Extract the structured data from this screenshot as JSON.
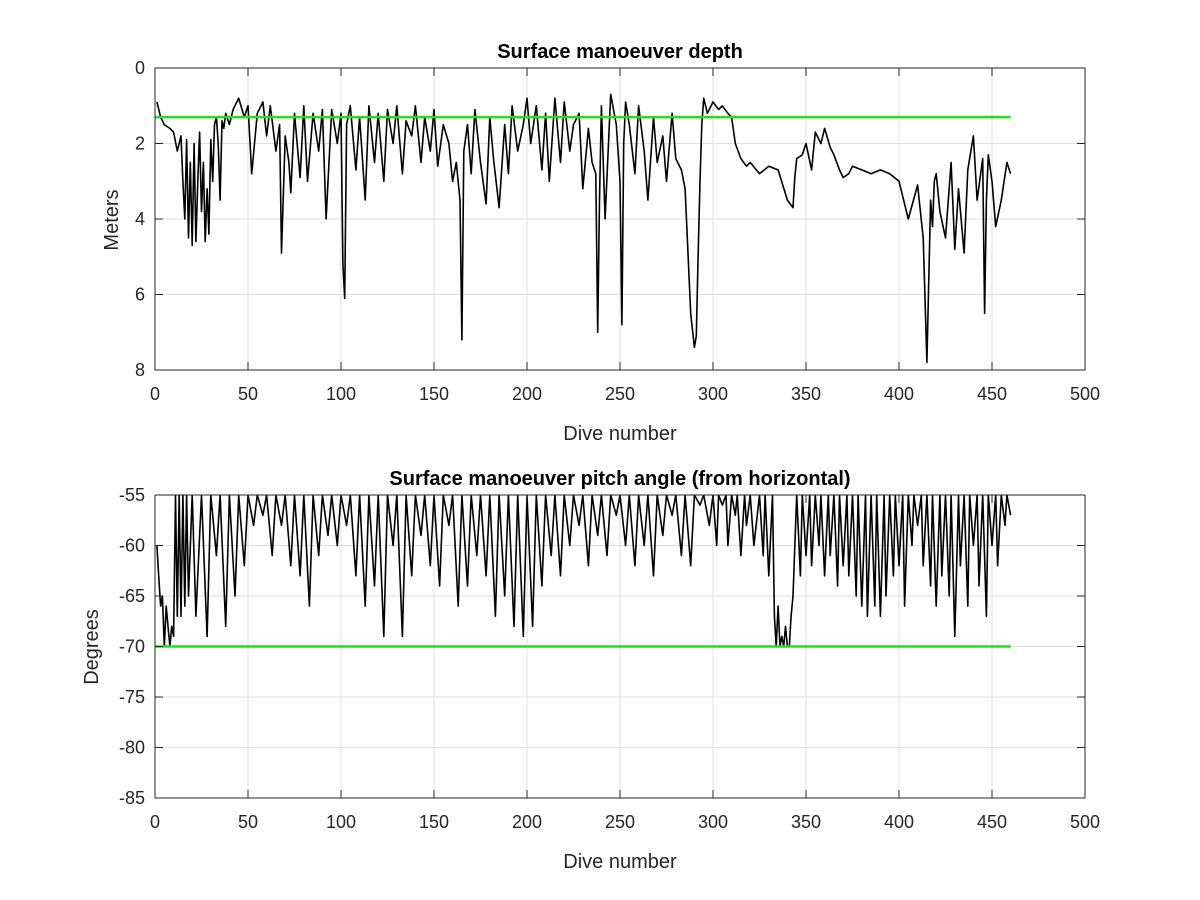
{
  "chart_data": [
    {
      "type": "line",
      "title": "Surface manoeuver depth",
      "xlabel": "Dive number",
      "ylabel": "Meters",
      "xlim": [
        0,
        500
      ],
      "ylim": [
        0,
        8
      ],
      "y_reversed": true,
      "xticks": [
        0,
        50,
        100,
        150,
        200,
        250,
        300,
        350,
        400,
        450,
        500
      ],
      "yticks": [
        0,
        2,
        4,
        6,
        8
      ],
      "grid": true,
      "colors": {
        "data": "#000000",
        "reference": "#22dd22"
      },
      "series": [
        {
          "role": "data",
          "x": [
            1,
            3,
            5,
            8,
            10,
            12,
            14,
            15,
            16,
            17,
            18,
            19,
            20,
            21,
            22,
            23,
            24,
            25,
            26,
            27,
            28,
            29,
            30,
            31,
            32,
            33,
            34,
            35,
            36,
            37,
            38,
            40,
            42,
            45,
            48,
            50,
            52,
            55,
            58,
            60,
            62,
            65,
            67,
            68,
            70,
            72,
            73,
            75,
            78,
            80,
            82,
            85,
            88,
            90,
            92,
            95,
            98,
            100,
            101,
            102,
            103,
            105,
            108,
            110,
            113,
            115,
            118,
            120,
            123,
            125,
            128,
            130,
            133,
            135,
            138,
            140,
            143,
            145,
            148,
            150,
            152,
            155,
            158,
            160,
            162,
            164,
            165,
            166,
            168,
            170,
            172,
            175,
            178,
            180,
            182,
            185,
            188,
            190,
            192,
            195,
            198,
            200,
            202,
            205,
            208,
            210,
            212,
            215,
            218,
            220,
            223,
            225,
            228,
            230,
            233,
            235,
            237,
            238,
            239,
            240,
            242,
            245,
            248,
            250,
            251,
            252,
            253,
            255,
            258,
            260,
            263,
            265,
            268,
            270,
            273,
            275,
            278,
            280,
            283,
            285,
            288,
            290,
            291,
            292,
            293,
            294,
            295,
            297,
            300,
            303,
            305,
            308,
            310,
            312,
            315,
            318,
            320,
            325,
            330,
            335,
            340,
            343,
            344,
            345,
            348,
            350,
            353,
            355,
            358,
            360,
            363,
            365,
            368,
            370,
            373,
            375,
            380,
            385,
            390,
            395,
            400,
            405,
            410,
            413,
            415,
            417,
            418,
            419,
            420,
            422,
            425,
            428,
            430,
            432,
            435,
            437,
            440,
            442,
            445,
            446,
            447,
            448,
            450,
            452,
            455,
            458,
            460
          ],
          "y": [
            0.9,
            1.3,
            1.5,
            1.6,
            1.7,
            2.2,
            1.8,
            3.0,
            4.0,
            1.9,
            4.5,
            2.5,
            4.7,
            2.0,
            4.6,
            3.0,
            1.7,
            3.8,
            2.5,
            4.6,
            3.2,
            4.4,
            1.9,
            3.0,
            1.5,
            1.3,
            2.0,
            3.5,
            1.4,
            1.6,
            1.2,
            1.5,
            1.1,
            0.8,
            1.3,
            1.0,
            2.8,
            1.2,
            0.9,
            1.8,
            1.0,
            2.2,
            1.5,
            4.9,
            1.8,
            2.5,
            3.3,
            1.2,
            2.9,
            1.0,
            3.0,
            1.2,
            2.2,
            1.1,
            4.0,
            1.1,
            2.0,
            1.2,
            5.2,
            6.1,
            1.5,
            1.0,
            2.7,
            1.3,
            3.5,
            1.0,
            2.5,
            1.2,
            3.0,
            1.1,
            2.0,
            1.0,
            2.8,
            1.4,
            1.8,
            1.0,
            2.5,
            1.3,
            2.2,
            1.1,
            2.6,
            1.5,
            2.0,
            3.0,
            2.5,
            3.5,
            7.2,
            2.2,
            1.5,
            2.8,
            1.1,
            2.5,
            3.6,
            1.3,
            2.4,
            3.7,
            1.5,
            2.8,
            1.0,
            2.2,
            1.5,
            0.8,
            2.0,
            1.0,
            2.7,
            1.2,
            3.0,
            0.8,
            2.5,
            0.9,
            2.2,
            1.5,
            1.2,
            3.2,
            1.6,
            2.5,
            2.8,
            7.0,
            3.5,
            1.0,
            4.0,
            0.7,
            1.5,
            3.0,
            6.8,
            2.0,
            0.9,
            1.5,
            2.8,
            1.0,
            2.2,
            3.5,
            1.3,
            2.5,
            1.8,
            3.0,
            1.2,
            2.4,
            2.7,
            3.2,
            6.5,
            7.4,
            7.1,
            5.0,
            3.0,
            1.5,
            0.8,
            1.2,
            0.9,
            1.1,
            1.0,
            1.2,
            1.3,
            2.0,
            2.4,
            2.6,
            2.5,
            2.8,
            2.6,
            2.7,
            3.5,
            3.7,
            2.9,
            2.4,
            2.3,
            2.0,
            2.7,
            1.7,
            2.0,
            1.6,
            2.1,
            2.3,
            2.7,
            2.9,
            2.8,
            2.6,
            2.7,
            2.8,
            2.7,
            2.8,
            3.0,
            4.0,
            3.1,
            4.5,
            7.8,
            3.5,
            4.2,
            3.0,
            2.8,
            3.8,
            4.5,
            2.5,
            4.8,
            3.2,
            4.9,
            2.7,
            1.8,
            3.5,
            2.4,
            6.5,
            3.5,
            2.3,
            3.0,
            4.2,
            3.5,
            2.5,
            2.8
          ]
        },
        {
          "role": "reference",
          "x": [
            0,
            460
          ],
          "y": [
            1.3,
            1.3
          ]
        }
      ]
    },
    {
      "type": "line",
      "title": "Surface manoeuver pitch angle (from horizontal)",
      "xlabel": "Dive number",
      "ylabel": "Degrees",
      "xlim": [
        0,
        500
      ],
      "ylim": [
        -85,
        -55
      ],
      "xticks": [
        0,
        50,
        100,
        150,
        200,
        250,
        300,
        350,
        400,
        450,
        500
      ],
      "yticks": [
        -55,
        -60,
        -65,
        -70,
        -75,
        -80,
        -85
      ],
      "grid": true,
      "colors": {
        "data": "#000000",
        "reference": "#22dd22"
      },
      "series": [
        {
          "role": "data",
          "x": [
            1,
            2,
            3,
            4,
            5,
            6,
            7,
            8,
            9,
            10,
            11,
            12,
            13,
            14,
            15,
            16,
            17,
            18,
            20,
            22,
            25,
            28,
            30,
            33,
            35,
            38,
            40,
            43,
            45,
            48,
            50,
            53,
            55,
            58,
            60,
            63,
            65,
            68,
            70,
            73,
            75,
            78,
            80,
            83,
            85,
            88,
            90,
            93,
            95,
            98,
            100,
            103,
            105,
            108,
            110,
            113,
            115,
            118,
            120,
            123,
            125,
            128,
            130,
            133,
            135,
            138,
            140,
            143,
            145,
            148,
            150,
            153,
            155,
            158,
            160,
            163,
            165,
            168,
            170,
            173,
            175,
            178,
            180,
            183,
            185,
            188,
            190,
            193,
            195,
            198,
            200,
            203,
            205,
            208,
            210,
            213,
            215,
            218,
            220,
            223,
            225,
            228,
            230,
            233,
            235,
            238,
            240,
            243,
            245,
            248,
            250,
            253,
            255,
            258,
            260,
            263,
            265,
            268,
            270,
            273,
            275,
            278,
            280,
            283,
            285,
            288,
            290,
            293,
            295,
            298,
            300,
            302,
            303,
            305,
            307,
            308,
            310,
            312,
            313,
            315,
            317,
            318,
            320,
            322,
            325,
            327,
            328,
            330,
            332,
            333,
            334,
            335,
            336,
            337,
            338,
            339,
            340,
            341,
            342,
            343,
            345,
            347,
            348,
            350,
            352,
            353,
            355,
            357,
            358,
            360,
            362,
            363,
            365,
            367,
            368,
            370,
            372,
            373,
            375,
            377,
            378,
            380,
            382,
            383,
            385,
            387,
            388,
            390,
            392,
            393,
            395,
            397,
            398,
            400,
            402,
            403,
            405,
            407,
            408,
            410,
            412,
            413,
            415,
            417,
            418,
            420,
            422,
            423,
            425,
            427,
            428,
            430,
            432,
            433,
            435,
            437,
            438,
            440,
            442,
            443,
            445,
            447,
            448,
            450,
            452,
            453,
            455,
            457,
            458,
            460
          ],
          "y": [
            -60,
            -63,
            -66,
            -65,
            -70,
            -66,
            -68,
            -70,
            -68,
            -69,
            -55,
            -67,
            -55,
            -67,
            -55,
            -66,
            -55,
            -65,
            -55,
            -67,
            -55,
            -69,
            -55,
            -61,
            -55,
            -68,
            -55,
            -65,
            -55,
            -62,
            -55,
            -58,
            -55,
            -57,
            -55,
            -61,
            -55,
            -58,
            -55,
            -62,
            -55,
            -63,
            -55,
            -66,
            -55,
            -61,
            -55,
            -59,
            -55,
            -60,
            -55,
            -58,
            -55,
            -63,
            -55,
            -66,
            -55,
            -64,
            -55,
            -69,
            -55,
            -60,
            -55,
            -69,
            -55,
            -63,
            -55,
            -59,
            -55,
            -62,
            -55,
            -64,
            -55,
            -58,
            -55,
            -66,
            -55,
            -64,
            -55,
            -61,
            -55,
            -63,
            -55,
            -67,
            -55,
            -65,
            -55,
            -68,
            -55,
            -69,
            -55,
            -68,
            -55,
            -64,
            -55,
            -61,
            -55,
            -63,
            -55,
            -60,
            -55,
            -58,
            -55,
            -62,
            -55,
            -59,
            -55,
            -61,
            -55,
            -57,
            -55,
            -60,
            -55,
            -62,
            -55,
            -60,
            -55,
            -63,
            -55,
            -59,
            -55,
            -57,
            -55,
            -61,
            -55,
            -62,
            -55,
            -56,
            -55,
            -58,
            -55,
            -60,
            -55,
            -56,
            -55,
            -60,
            -55,
            -57,
            -55,
            -61,
            -55,
            -58,
            -55,
            -60,
            -55,
            -61,
            -55,
            -63,
            -55,
            -67,
            -70,
            -66,
            -70,
            -69,
            -70,
            -68,
            -70,
            -70,
            -67,
            -65,
            -55,
            -63,
            -55,
            -61,
            -55,
            -62,
            -55,
            -60,
            -55,
            -63,
            -55,
            -61,
            -55,
            -64,
            -55,
            -62,
            -55,
            -63,
            -55,
            -65,
            -55,
            -66,
            -55,
            -67,
            -55,
            -66,
            -55,
            -67,
            -55,
            -65,
            -55,
            -63,
            -55,
            -62,
            -55,
            -66,
            -55,
            -60,
            -55,
            -58,
            -55,
            -62,
            -55,
            -64,
            -55,
            -66,
            -55,
            -63,
            -55,
            -65,
            -55,
            -69,
            -55,
            -62,
            -55,
            -66,
            -55,
            -60,
            -55,
            -64,
            -55,
            -67,
            -55,
            -60,
            -55,
            -62,
            -55,
            -58,
            -55,
            -57
          ]
        },
        {
          "role": "reference",
          "x": [
            0,
            460
          ],
          "y": [
            -70,
            -70
          ]
        }
      ]
    }
  ]
}
